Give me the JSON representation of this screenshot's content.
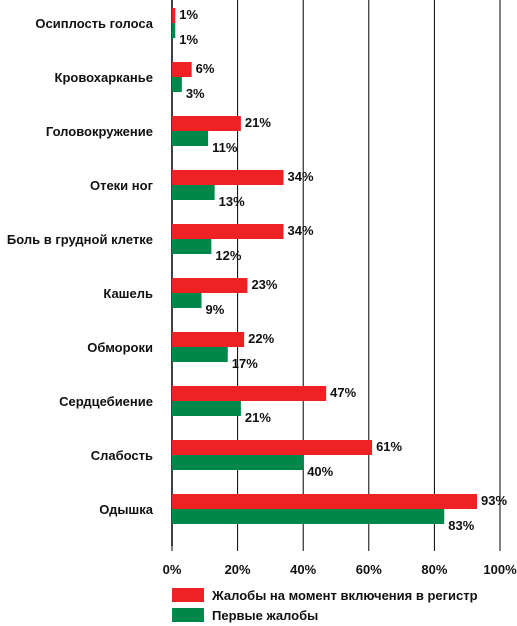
{
  "chart_data": {
    "type": "bar",
    "orientation": "horizontal",
    "categories": [
      "Осиплость голоса",
      "Кровохарканье",
      "Головокружение",
      "Отеки ног",
      "Боль в грудной клетке",
      "Кашель",
      "Обмороки",
      "Сердцебиение",
      "Слабость",
      "Одышка"
    ],
    "series": [
      {
        "name": "Жалобы на момент включения в регистр",
        "color": "#ee2224",
        "values": [
          1,
          6,
          21,
          34,
          34,
          23,
          22,
          47,
          61,
          93
        ],
        "labels": [
          "1%",
          "6%",
          "21%",
          "34%",
          "34%",
          "23%",
          "22%",
          "47%",
          "61%",
          "93%"
        ]
      },
      {
        "name": "Первые жалобы",
        "color": "#00874a",
        "values": [
          1,
          3,
          11,
          13,
          12,
          9,
          17,
          21,
          40,
          83
        ],
        "labels": [
          "1%",
          "3%",
          "11%",
          "13%",
          "12%",
          "9%",
          "17%",
          "21%",
          "40%",
          "83%"
        ]
      }
    ],
    "xlim": [
      0,
      100
    ],
    "xticks": [
      "0%",
      "20%",
      "40%",
      "60%",
      "80%",
      "100%"
    ],
    "grid": "vertical",
    "legend_position": "bottom"
  }
}
